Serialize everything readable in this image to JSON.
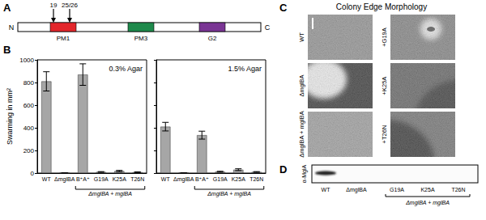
{
  "panel_labels": [
    "A",
    "B",
    "C",
    "D"
  ],
  "domain_diagram": {
    "n_label": "N",
    "c_label": "C",
    "sites": [
      "19",
      "25/26"
    ],
    "domains": [
      {
        "label": "PM1",
        "color": "#e3262b"
      },
      {
        "label": "PM3",
        "color": "#1f8a4c"
      },
      {
        "label": "G2",
        "color": "#7a3594"
      }
    ]
  },
  "chart_data": [
    {
      "type": "bar",
      "title": "0.3% Agar",
      "ylabel": "Swarming in mm²",
      "categories": [
        "WT",
        "ΔmglBA",
        "B⁺A⁺",
        "G19A",
        "K25A",
        "T26N"
      ],
      "values": [
        810,
        2,
        870,
        10,
        18,
        8
      ],
      "errors": [
        85,
        0,
        95,
        3,
        6,
        3
      ],
      "color": "#a6a6a6",
      "ylim": [
        0,
        1000
      ],
      "yticks": [
        0,
        200,
        400,
        600,
        800,
        1000
      ],
      "grid": false,
      "group": {
        "label": "ΔmglBA + mglBA",
        "categories": [
          "B⁺A⁺",
          "G19A",
          "K25A",
          "T26N"
        ]
      }
    },
    {
      "type": "bar",
      "title": "1.5% Agar",
      "categories": [
        "WT",
        "ΔmglBA",
        "B⁺A⁺",
        "G19A",
        "K25A",
        "T26N"
      ],
      "values": [
        410,
        2,
        335,
        12,
        30,
        10
      ],
      "errors": [
        38,
        0,
        35,
        4,
        8,
        3
      ],
      "color": "#a6a6a6",
      "ylim": [
        0,
        1000
      ],
      "yticks": [
        0,
        200,
        400,
        600,
        800,
        1000
      ],
      "grid": false,
      "tick_labels": "x",
      "group": {
        "label": "ΔmglBA + mglBA",
        "categories": [
          "B⁺A⁺",
          "G19A",
          "K25A",
          "T26N"
        ]
      }
    }
  ],
  "morphology": {
    "title": "Colony Edge Morphology",
    "tiles": [
      {
        "label": "WT"
      },
      {
        "label": "ΔmglBA"
      },
      {
        "label": "ΔmglBA + mglBA"
      },
      {
        "label": "+G19A"
      },
      {
        "label": "+K25A"
      },
      {
        "label": "+T26N"
      }
    ]
  },
  "blot": {
    "antibody": "α-MglA",
    "lanes": [
      "WT",
      "ΔmglBA",
      "G19A",
      "K25A",
      "T26N"
    ],
    "band": [
      true,
      false,
      false,
      false,
      false
    ],
    "group": {
      "label": "ΔmglBA + mglBA",
      "lanes": [
        "G19A",
        "K25A",
        "T26N"
      ]
    }
  }
}
